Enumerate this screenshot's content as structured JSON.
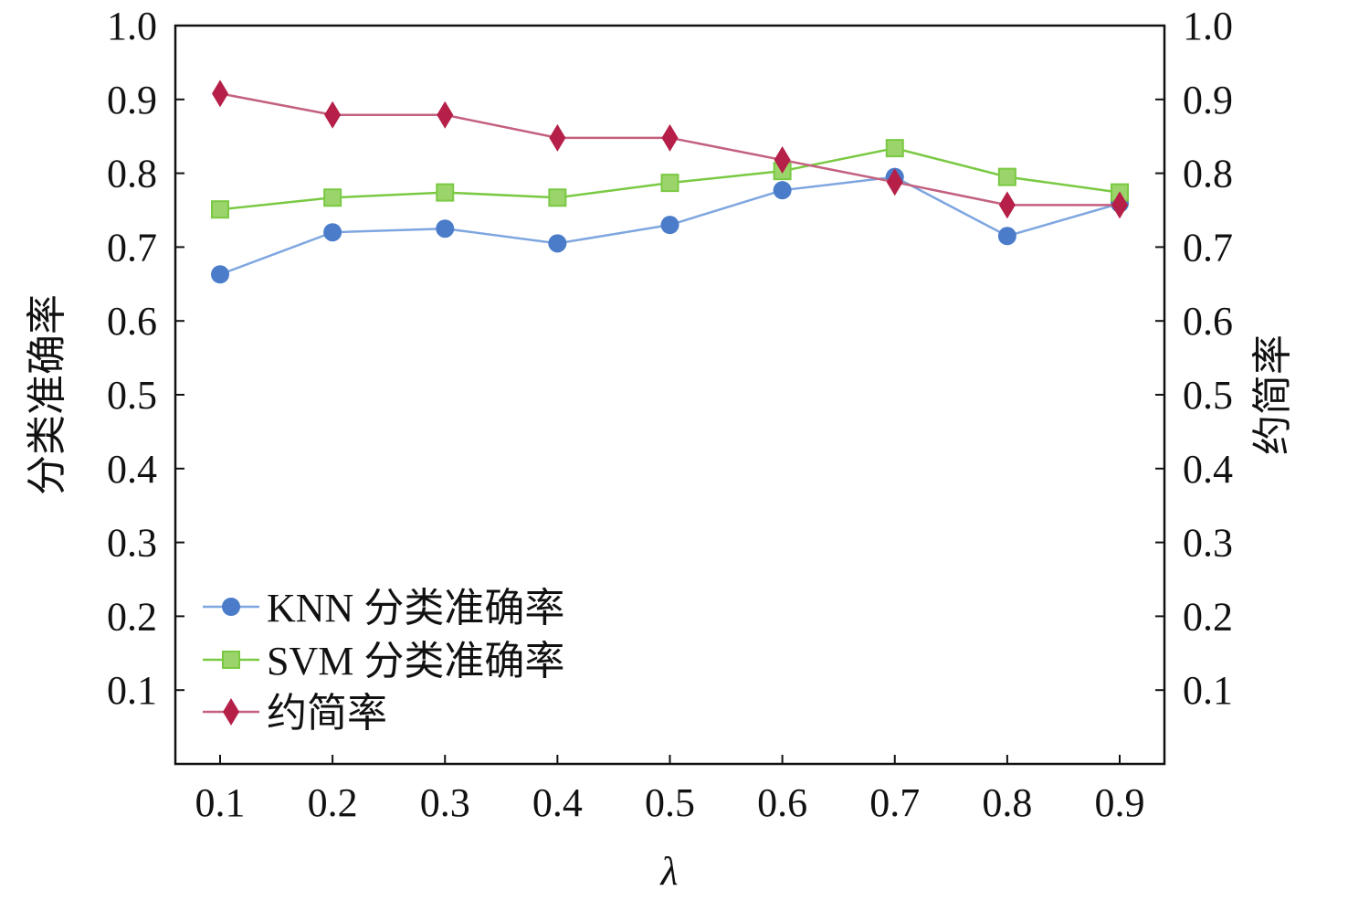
{
  "chart_data": {
    "type": "line",
    "title": "",
    "xlabel": "λ",
    "ylabel": "分类准确率",
    "y2label": "约简率",
    "x": [
      0.1,
      0.2,
      0.3,
      0.4,
      0.5,
      0.6,
      0.7,
      0.8,
      0.9
    ],
    "x_tick_labels": [
      "0.1",
      "0.2",
      "0.3",
      "0.4",
      "0.5",
      "0.6",
      "0.7",
      "0.8",
      "0.9"
    ],
    "ylim": [
      0,
      1.0
    ],
    "y_tick_labels": [
      "0.1",
      "0.2",
      "0.3",
      "0.4",
      "0.5",
      "0.6",
      "0.7",
      "0.8",
      "0.9",
      "1.0"
    ],
    "y2lim": [
      0,
      1.0
    ],
    "y2_tick_labels": [
      "0.1",
      "0.2",
      "0.3",
      "0.4",
      "0.5",
      "0.6",
      "0.7",
      "0.8",
      "0.9",
      "1.0"
    ],
    "grid": false,
    "legend_position": "bottom-left",
    "series": [
      {
        "name": "KNN 分类准确率",
        "axis": "left",
        "marker": "circle",
        "line_color": "#7ea6e0",
        "marker_color": "#4a7cc9",
        "values": [
          0.663,
          0.72,
          0.725,
          0.705,
          0.73,
          0.777,
          0.795,
          0.715,
          0.759
        ]
      },
      {
        "name": "SVM 分类准确率",
        "axis": "left",
        "marker": "square",
        "line_color": "#7ac943",
        "marker_color": "#9bd46a",
        "values": [
          0.751,
          0.767,
          0.774,
          0.767,
          0.787,
          0.803,
          0.834,
          0.795,
          0.774
        ]
      },
      {
        "name": "约简率",
        "axis": "right",
        "marker": "diamond",
        "line_color": "#c3607e",
        "marker_color": "#b51f48",
        "values": [
          0.908,
          0.879,
          0.879,
          0.848,
          0.848,
          0.818,
          0.788,
          0.757,
          0.757
        ]
      }
    ]
  }
}
